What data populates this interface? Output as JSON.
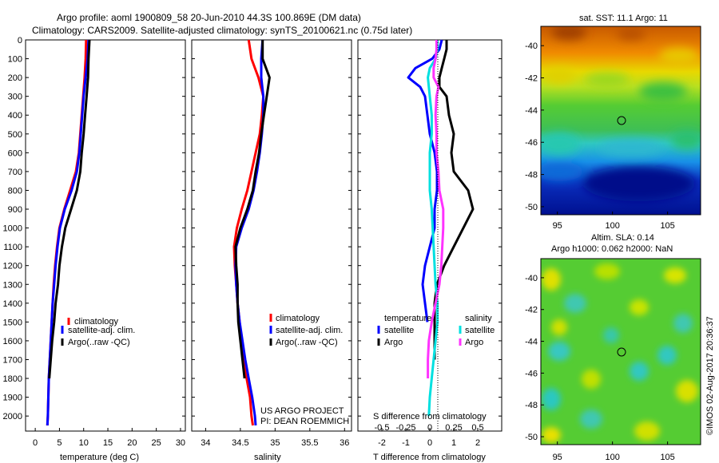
{
  "header": {
    "line1": "Argo profile: aoml 1900809_58 20-Jun-2010 44.3S 100.869E (DM data)",
    "line2": "Climatology: CARS2009. Satellite-adjusted climatology: synTS_20100621.nc (0.75d later)"
  },
  "footer_text": {
    "project": "US ARGO PROJECT",
    "pi": "PI: DEAN ROEMMICH",
    "credit": "©IMOS 02-Aug-2017 20:36:37"
  },
  "colors": {
    "climatology": "#ff0000",
    "satellite": "#0000ff",
    "argo": "#000000",
    "sal_satellite": "#00e0e0",
    "sal_argo": "#ff33ff"
  },
  "depth_ticks": [
    "0",
    "100",
    "200",
    "300",
    "400",
    "500",
    "600",
    "700",
    "800",
    "900",
    "1000",
    "1100",
    "1200",
    "1300",
    "1400",
    "1500",
    "1600",
    "1700",
    "1800",
    "1900",
    "2000"
  ],
  "chart_data": [
    {
      "type": "line",
      "panel": "temperature",
      "xlabel": "temperature (deg C)",
      "ylabel": "",
      "xlim": [
        -2,
        31
      ],
      "ylim": [
        2080,
        0
      ],
      "x_ticks": [
        "0",
        "5",
        "10",
        "15",
        "20",
        "25",
        "30"
      ],
      "legend": [
        "climatology",
        "satellite-adj. clim.",
        "Argo(..raw -QC)"
      ],
      "legend_position": "bottom-center",
      "depth": [
        0,
        100,
        200,
        300,
        400,
        500,
        600,
        700,
        800,
        900,
        1000,
        1100,
        1200,
        1300,
        1400,
        1500,
        1600,
        1700,
        1800,
        1900,
        2000,
        2050
      ],
      "series": [
        {
          "name": "climatology",
          "color": "#ff0000",
          "values": [
            10.5,
            10.4,
            10.2,
            9.9,
            9.6,
            9.3,
            9.0,
            8.4,
            7.2,
            6.0,
            5.0,
            4.5,
            4.1,
            3.8,
            3.6,
            3.4,
            3.2,
            3.0,
            2.8,
            2.7,
            2.6,
            2.5
          ]
        },
        {
          "name": "satellite-adj. clim.",
          "color": "#0000ff",
          "values": [
            11.0,
            10.8,
            10.4,
            10.0,
            9.7,
            9.4,
            9.1,
            8.6,
            7.5,
            6.1,
            5.1,
            4.6,
            4.2,
            3.9,
            3.6,
            3.4,
            3.2,
            3.0,
            2.8,
            2.7,
            2.6,
            2.5
          ]
        },
        {
          "name": "Argo(..raw -QC)",
          "color": "#000000",
          "values": [
            11.2,
            11.0,
            10.9,
            10.6,
            10.3,
            10.0,
            9.6,
            9.3,
            8.6,
            7.4,
            6.2,
            5.5,
            5.0,
            4.7,
            4.2,
            3.9,
            3.5,
            3.2,
            2.9,
            null,
            null,
            null
          ]
        }
      ]
    },
    {
      "type": "line",
      "panel": "salinity",
      "xlabel": "salinity",
      "ylabel": "",
      "xlim": [
        33.8,
        36.1
      ],
      "ylim": [
        2080,
        0
      ],
      "x_ticks": [
        "34",
        "34.5",
        "35",
        "35.5",
        "36"
      ],
      "legend": [
        "climatology",
        "satellite-adj. clim.",
        "Argo(..raw -QC)"
      ],
      "legend_position": "bottom-right",
      "depth": [
        0,
        100,
        200,
        300,
        400,
        500,
        600,
        700,
        800,
        900,
        1000,
        1100,
        1200,
        1300,
        1400,
        1500,
        1600,
        1700,
        1800,
        1900,
        2000,
        2050
      ],
      "series": [
        {
          "name": "climatology",
          "color": "#ff0000",
          "values": [
            34.62,
            34.66,
            34.76,
            34.83,
            34.81,
            34.78,
            34.72,
            34.66,
            34.6,
            34.52,
            34.45,
            34.41,
            34.42,
            34.44,
            34.46,
            34.49,
            34.52,
            34.55,
            34.59,
            34.64,
            34.66,
            34.68
          ]
        },
        {
          "name": "satellite-adj. clim.",
          "color": "#0000ff",
          "values": [
            34.82,
            34.8,
            34.8,
            34.83,
            34.83,
            34.81,
            34.78,
            34.74,
            34.69,
            34.62,
            34.52,
            34.44,
            34.43,
            34.44,
            34.46,
            34.49,
            34.53,
            34.57,
            34.62,
            34.67,
            34.71,
            34.72
          ]
        },
        {
          "name": "Argo(..raw -QC)",
          "color": "#000000",
          "values": [
            34.82,
            34.82,
            34.92,
            34.88,
            34.84,
            34.8,
            34.77,
            34.72,
            34.68,
            34.6,
            34.5,
            34.43,
            34.44,
            34.46,
            34.46,
            34.47,
            34.5,
            34.53,
            34.56,
            null,
            null,
            null
          ]
        }
      ]
    },
    {
      "type": "line",
      "panel": "difference",
      "xlabel": "T difference from climatology",
      "xlabel_top": "S difference from climatology",
      "xlim_T": [
        -3,
        3
      ],
      "xlim_S": [
        -0.75,
        0.75
      ],
      "ylim": [
        2080,
        0
      ],
      "x_ticks_T": [
        "-2",
        "-1",
        "0",
        "1",
        "2"
      ],
      "x_ticks_S": [
        "-0.5",
        "-0.25",
        "0",
        "0.25",
        "0.5"
      ],
      "legend_titles": [
        "temperature",
        "salinity"
      ],
      "legend": [
        "satellite",
        "Argo",
        "satellite",
        "Argo"
      ],
      "legend_position": "bottom",
      "depth": [
        0,
        50,
        100,
        150,
        200,
        250,
        300,
        400,
        500,
        600,
        700,
        800,
        900,
        1000,
        1100,
        1200,
        1300,
        1400,
        1500,
        1600,
        1700,
        1800,
        1900,
        2000
      ],
      "series": [
        {
          "name": "satellite",
          "quantity": "temperature",
          "color": "#0000ff",
          "values": [
            0.5,
            0.4,
            0.1,
            -0.6,
            -0.9,
            -0.4,
            -0.2,
            -0.1,
            0.0,
            0.2,
            0.3,
            0.3,
            0.2,
            0.2,
            0.0,
            -0.2,
            -0.3,
            -0.2,
            -0.1,
            null,
            null,
            null,
            null,
            null
          ]
        },
        {
          "name": "Argo",
          "quantity": "temperature",
          "color": "#000000",
          "values": [
            0.7,
            0.7,
            0.6,
            0.5,
            0.4,
            0.4,
            0.7,
            0.8,
            1.0,
            0.9,
            1.0,
            1.6,
            1.8,
            1.4,
            1.0,
            0.6,
            0.3,
            0.2,
            0.2,
            0.2,
            0.2,
            null,
            null,
            null
          ]
        },
        {
          "name": "satellite",
          "quantity": "salinity",
          "color": "#00e0e0",
          "values": [
            0.08,
            0.08,
            0.06,
            0.0,
            -0.02,
            -0.01,
            0.0,
            0.02,
            0.02,
            0.0,
            0.0,
            0.0,
            0.02,
            0.03,
            0.04,
            0.05,
            0.06,
            0.08,
            0.08,
            0.06,
            0.04,
            0.02,
            0.0,
            -0.01
          ]
        },
        {
          "name": "Argo",
          "quantity": "salinity",
          "color": "#ff33ff",
          "values": [
            0.07,
            0.07,
            0.06,
            0.04,
            0.04,
            0.09,
            0.07,
            0.06,
            0.07,
            0.07,
            0.09,
            0.1,
            0.14,
            0.14,
            0.13,
            0.12,
            0.1,
            0.06,
            0.02,
            -0.01,
            -0.02,
            -0.02,
            null,
            null
          ]
        }
      ]
    },
    {
      "type": "heatmap",
      "panel": "sst_map",
      "title": "sat. SST: 11.1  Argo: 11",
      "x_ticks": [
        "95",
        "100",
        "105"
      ],
      "y_ticks": [
        "-40",
        "-42",
        "-44",
        "-46",
        "-48",
        "-50"
      ],
      "xlim": [
        93.5,
        108
      ],
      "ylim": [
        -50.5,
        -38.8
      ],
      "marker": {
        "lon": 100.87,
        "lat": -44.3
      }
    },
    {
      "type": "heatmap",
      "panel": "sla_map",
      "title": "Altim. SLA: 0.14",
      "subtitle": "Argo h1000: 0.062 h2000: NaN",
      "x_ticks": [
        "95",
        "100",
        "105"
      ],
      "y_ticks": [
        "-40",
        "-42",
        "-44",
        "-46",
        "-48",
        "-50"
      ],
      "xlim": [
        93.5,
        108
      ],
      "ylim": [
        -50.5,
        -38.8
      ],
      "marker": {
        "lon": 100.87,
        "lat": -44.3
      }
    }
  ]
}
